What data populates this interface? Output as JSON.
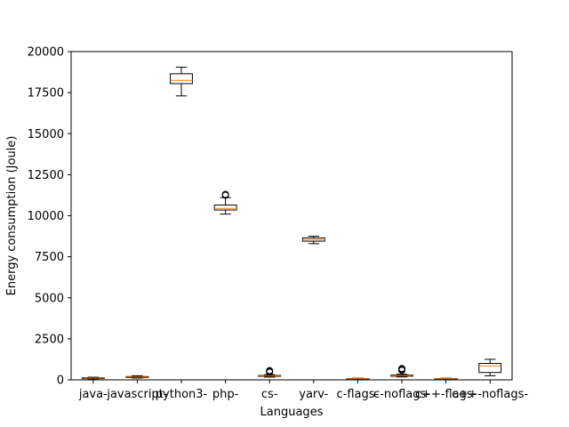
{
  "chart_data": {
    "type": "box",
    "title": "",
    "xlabel": "Languages",
    "ylabel": "Energy consumption (Joule)",
    "ylim": [
      0,
      20000
    ],
    "yticks": [
      0,
      2500,
      5000,
      7500,
      10000,
      12500,
      15000,
      17500,
      20000
    ],
    "grid": false,
    "categories": [
      "java-",
      "javascript-",
      "python3-",
      "php-",
      "cs-",
      "yarv-",
      "c-flags-",
      "c-noflags-",
      "c++-flags-",
      "c++-noflags-"
    ],
    "boxes": [
      {
        "name": "java-",
        "whisker_low": 60,
        "q1": 90,
        "median": 110,
        "q3": 130,
        "whisker_high": 160,
        "outliers": []
      },
      {
        "name": "javascript-",
        "whisker_low": 110,
        "q1": 140,
        "median": 170,
        "q3": 200,
        "whisker_high": 250,
        "outliers": []
      },
      {
        "name": "python3-",
        "whisker_low": 17300,
        "q1": 18050,
        "median": 18250,
        "q3": 18650,
        "whisker_high": 19050,
        "outliers": []
      },
      {
        "name": "php-",
        "whisker_low": 10100,
        "q1": 10350,
        "median": 10450,
        "q3": 10650,
        "whisker_high": 11100,
        "outliers": [
          11250,
          11300
        ]
      },
      {
        "name": "cs-",
        "whisker_low": 170,
        "q1": 210,
        "median": 240,
        "q3": 270,
        "whisker_high": 310,
        "outliers": [
          470,
          520,
          560
        ]
      },
      {
        "name": "yarv-",
        "whisker_low": 8300,
        "q1": 8450,
        "median": 8550,
        "q3": 8650,
        "whisker_high": 8750,
        "outliers": []
      },
      {
        "name": "c-flags-",
        "whisker_low": 40,
        "q1": 60,
        "median": 70,
        "q3": 80,
        "whisker_high": 100,
        "outliers": []
      },
      {
        "name": "c-noflags-",
        "whisker_low": 180,
        "q1": 220,
        "median": 250,
        "q3": 290,
        "whisker_high": 340,
        "outliers": [
          580,
          640,
          690
        ]
      },
      {
        "name": "c++-flags-",
        "whisker_low": 40,
        "q1": 60,
        "median": 70,
        "q3": 80,
        "whisker_high": 100,
        "outliers": []
      },
      {
        "name": "c++-noflags-",
        "whisker_low": 250,
        "q1": 450,
        "median": 850,
        "q3": 1000,
        "whisker_high": 1250,
        "outliers": []
      }
    ]
  },
  "colors": {
    "box": "#000000",
    "median": "#ff7f0e",
    "axis": "#000000",
    "background": "#ffffff"
  }
}
